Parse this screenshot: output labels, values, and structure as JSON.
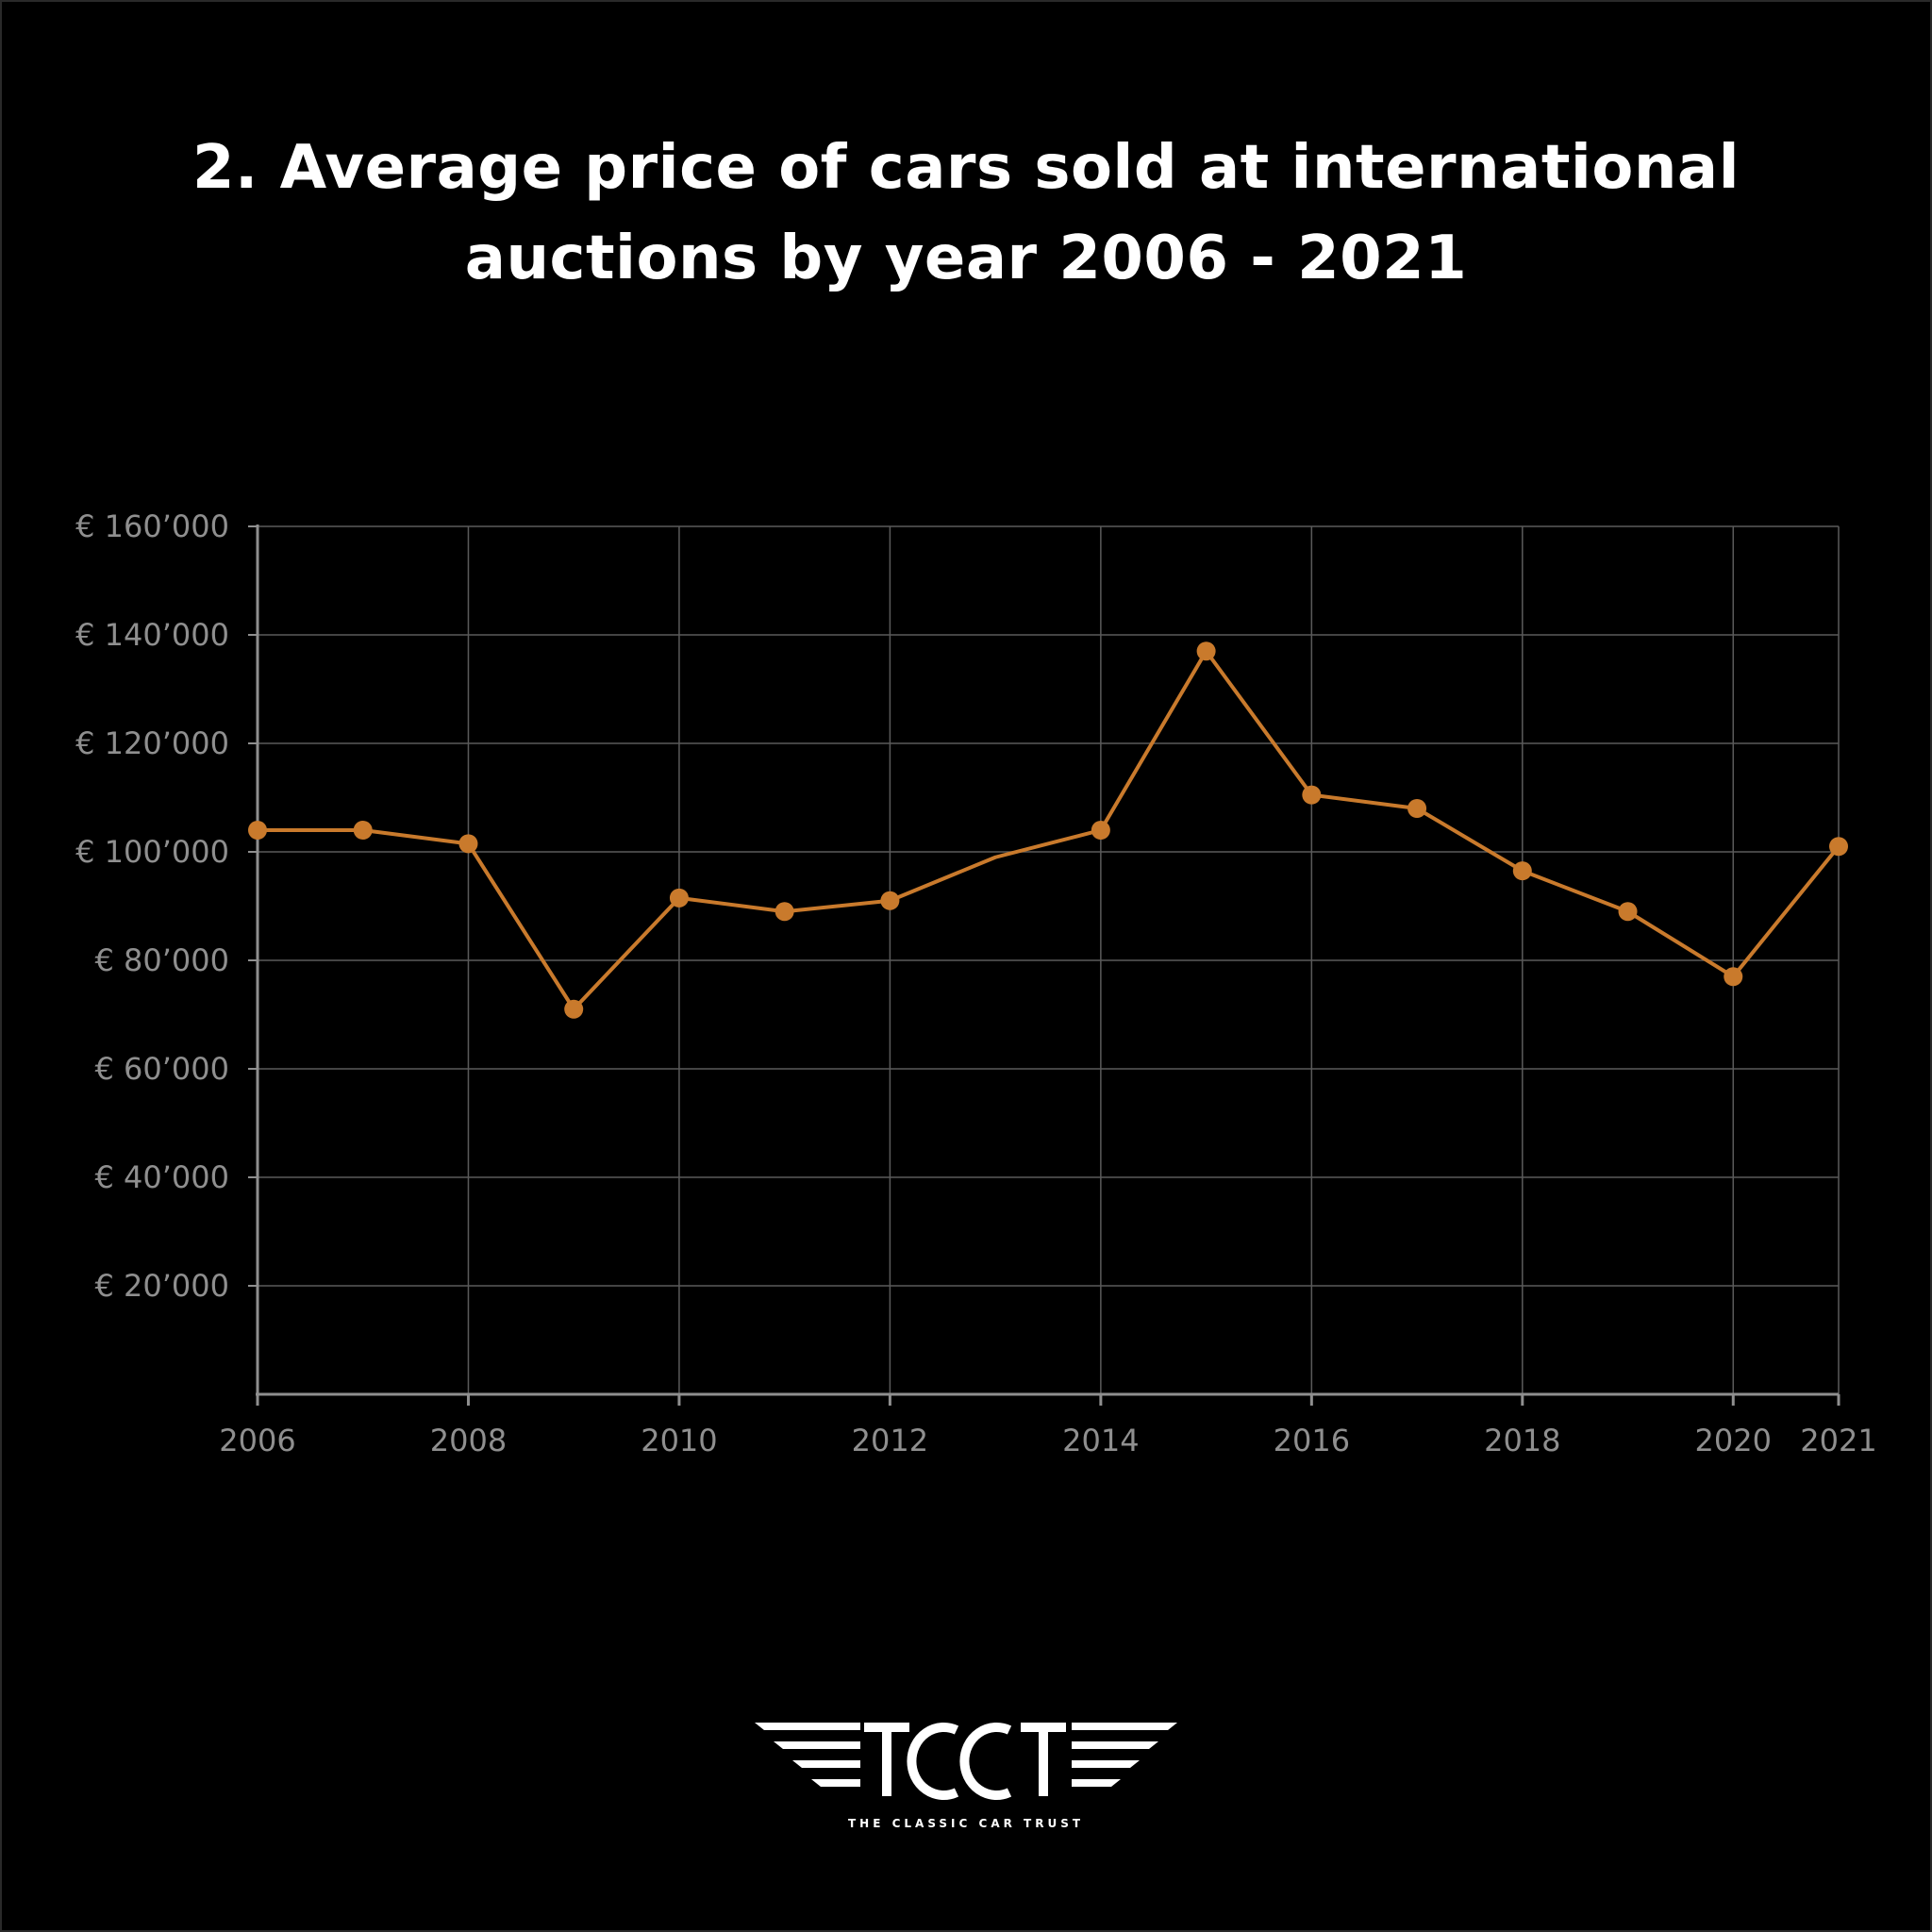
{
  "title": {
    "line1": "2. Average price of cars sold at international",
    "line2": "auctions by year 2006 - 2021"
  },
  "colors": {
    "background": "#000000",
    "line": "#c97a2c",
    "grid": "#5a5a5a",
    "axis": "#8f8f8f",
    "text": "#ffffff"
  },
  "chart_data": {
    "type": "line",
    "title": "2. Average price of cars sold at international auctions by year 2006 - 2021",
    "xlabel": "",
    "ylabel": "",
    "x": [
      2006,
      2007,
      2008,
      2009,
      2010,
      2011,
      2012,
      2013,
      2014,
      2015,
      2016,
      2017,
      2018,
      2019,
      2020,
      2021
    ],
    "series": [
      {
        "values": [
          104000,
          104000,
          101500,
          71000,
          91500,
          89000,
          91000,
          99000,
          104000,
          137000,
          110500,
          108000,
          96500,
          89000,
          77000,
          101000
        ],
        "markers": [
          true,
          true,
          true,
          true,
          true,
          true,
          true,
          false,
          true,
          true,
          true,
          true,
          true,
          true,
          true,
          true
        ]
      }
    ],
    "xlim": [
      2006,
      2021
    ],
    "ylim": [
      0,
      160000
    ],
    "x_ticks": [
      2006,
      2008,
      2010,
      2012,
      2014,
      2016,
      2018,
      2020,
      2021
    ],
    "x_tick_labels": [
      "2006",
      "2008",
      "2010",
      "2012",
      "2014",
      "2016",
      "2018",
      "2020",
      "2021"
    ],
    "y_ticks": [
      20000,
      40000,
      60000,
      80000,
      100000,
      120000,
      140000,
      160000
    ],
    "y_tick_labels": [
      "€ 20’000",
      "€ 40’000",
      "€ 60’000",
      "€ 80’000",
      "€ 100’000",
      "€ 120’000",
      "€ 140’000",
      "€ 160’000"
    ],
    "grid": true,
    "legend": "none"
  },
  "logo": {
    "letters": "TCCT",
    "tagline": "THE CLASSIC CAR TRUST"
  }
}
